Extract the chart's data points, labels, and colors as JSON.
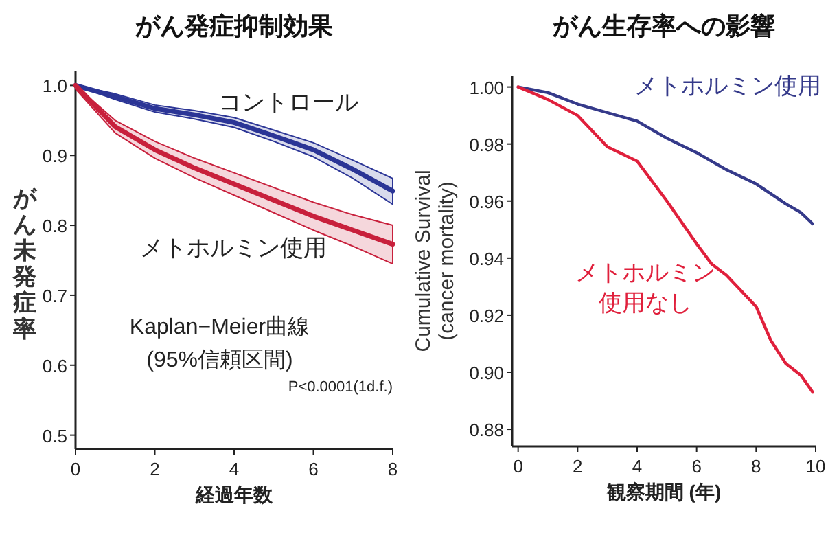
{
  "chart_data": [
    {
      "type": "line",
      "title": "がん発症抑制効果",
      "xlabel": "経過年数",
      "ylabel": "がん未発症率",
      "xlim": [
        0,
        8
      ],
      "ylim": [
        0.48,
        1.02
      ],
      "xticks": [
        0,
        2,
        4,
        6,
        8
      ],
      "yticks": [
        {
          "value": 0.5,
          "label": "0.5"
        },
        {
          "value": 0.6,
          "label": "0.6"
        },
        {
          "value": 0.7,
          "label": "0.7"
        },
        {
          "value": 0.8,
          "label": "0.8"
        },
        {
          "value": 0.9,
          "label": "0.9"
        },
        {
          "value": 1,
          "label": "1.0"
        }
      ],
      "grid": false,
      "legend": false,
      "marker": "none",
      "line_style": "solid",
      "x": [
        0,
        1,
        2,
        3,
        4,
        5,
        6,
        7,
        8
      ],
      "series": [
        {
          "name": "コントロール",
          "color": "#2b3596",
          "values": [
            1.0,
            0.984,
            0.967,
            0.958,
            0.947,
            0.928,
            0.908,
            0.88,
            0.849
          ],
          "lower": [
            1.0,
            0.98,
            0.962,
            0.952,
            0.94,
            0.92,
            0.898,
            0.867,
            0.83
          ],
          "upper": [
            1.0,
            0.988,
            0.972,
            0.964,
            0.954,
            0.936,
            0.918,
            0.893,
            0.867
          ]
        },
        {
          "name": "メトホルミン使用",
          "color": "#c8203c",
          "values": [
            1.0,
            0.941,
            0.908,
            0.882,
            0.859,
            0.836,
            0.813,
            0.793,
            0.773
          ],
          "lower": [
            0.995,
            0.932,
            0.896,
            0.868,
            0.843,
            0.818,
            0.793,
            0.77,
            0.745
          ],
          "upper": [
            1.0,
            0.95,
            0.92,
            0.896,
            0.875,
            0.854,
            0.833,
            0.815,
            0.8
          ]
        }
      ],
      "annotations": [
        "Kaplan−Meier曲線",
        "(95%信頼区間)",
        "P<0.0001(1d.f.)"
      ]
    },
    {
      "type": "line",
      "title": "がん生存率への影響",
      "xlabel": "観察期間 (年)",
      "ylabel": "Cumulative Survival\n(cancer mortality)",
      "xlim": [
        -0.2,
        10
      ],
      "ylim": [
        0.874,
        1.004
      ],
      "xticks": [
        0,
        2,
        4,
        6,
        8,
        10
      ],
      "yticks": [
        {
          "value": 0.88,
          "label": "0.88"
        },
        {
          "value": 0.9,
          "label": "0.90"
        },
        {
          "value": 0.92,
          "label": "0.92"
        },
        {
          "value": 0.94,
          "label": "0.94"
        },
        {
          "value": 0.96,
          "label": "0.96"
        },
        {
          "value": 0.98,
          "label": "0.98"
        },
        {
          "value": 1,
          "label": "1.00"
        }
      ],
      "grid": false,
      "legend": false,
      "marker": "none",
      "line_style": "solid",
      "series": [
        {
          "name": "メトホルミン使用",
          "color": "#353a8a",
          "x": [
            0,
            1,
            2,
            3,
            4,
            5,
            6,
            7,
            8,
            9,
            9.5,
            9.9
          ],
          "values": [
            1.0,
            0.998,
            0.994,
            0.991,
            0.988,
            0.982,
            0.977,
            0.971,
            0.966,
            0.959,
            0.956,
            0.952
          ]
        },
        {
          "name": "メトホルミン使用なし",
          "color": "#e0203c",
          "x": [
            0,
            1,
            2,
            3,
            4,
            5,
            6,
            6.5,
            7,
            8,
            8.5,
            9,
            9.5,
            9.9
          ],
          "values": [
            1.0,
            0.9956,
            0.99,
            0.979,
            0.974,
            0.96,
            0.945,
            0.938,
            0.934,
            0.923,
            0.911,
            0.903,
            0.899,
            0.893
          ]
        }
      ]
    }
  ]
}
